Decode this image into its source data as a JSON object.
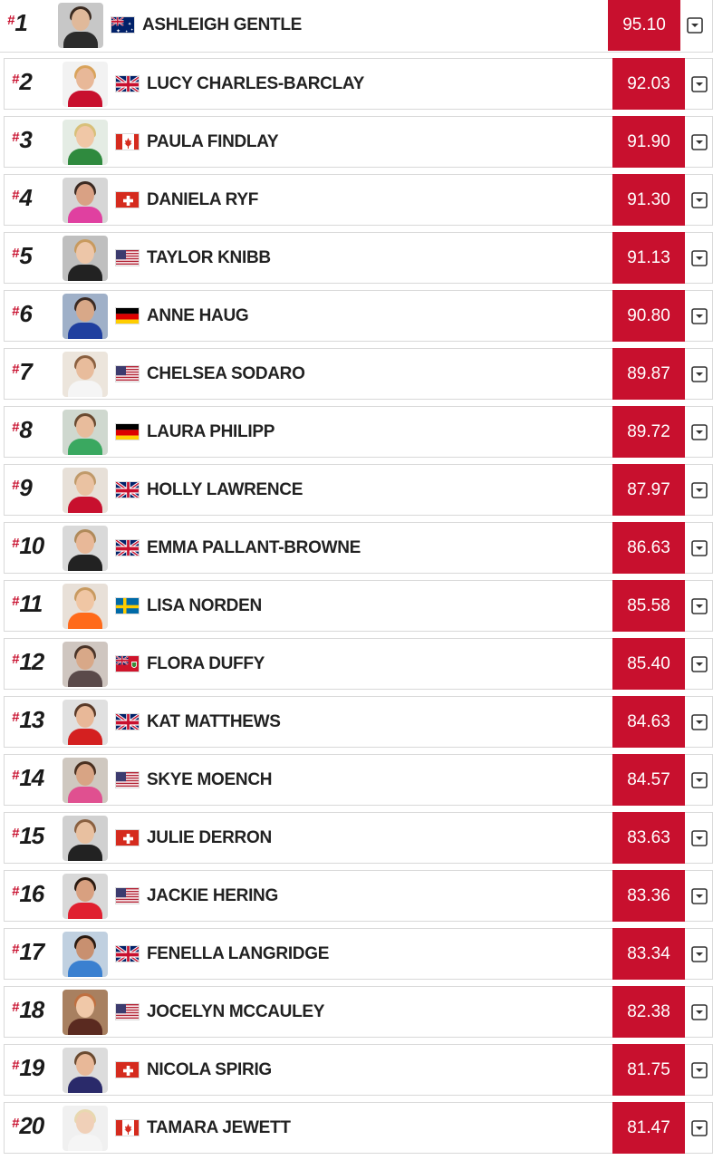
{
  "accent_color": "#c8102e",
  "rank_prefix": "#",
  "expand_icon": "chevron-down-box-icon",
  "athletes": [
    {
      "rank": "1",
      "name": "ASHLEIGH GENTLE",
      "country": "AUS",
      "score": "95.10"
    },
    {
      "rank": "2",
      "name": "LUCY CHARLES-BARCLAY",
      "country": "GBR",
      "score": "92.03"
    },
    {
      "rank": "3",
      "name": "PAULA FINDLAY",
      "country": "CAN",
      "score": "91.90"
    },
    {
      "rank": "4",
      "name": "DANIELA RYF",
      "country": "SUI",
      "score": "91.30"
    },
    {
      "rank": "5",
      "name": "TAYLOR KNIBB",
      "country": "USA",
      "score": "91.13"
    },
    {
      "rank": "6",
      "name": "ANNE HAUG",
      "country": "GER",
      "score": "90.80"
    },
    {
      "rank": "7",
      "name": "CHELSEA SODARO",
      "country": "USA",
      "score": "89.87"
    },
    {
      "rank": "8",
      "name": "LAURA PHILIPP",
      "country": "GER",
      "score": "89.72"
    },
    {
      "rank": "9",
      "name": "HOLLY LAWRENCE",
      "country": "GBR",
      "score": "87.97"
    },
    {
      "rank": "10",
      "name": "EMMA PALLANT-BROWNE",
      "country": "GBR",
      "score": "86.63"
    },
    {
      "rank": "11",
      "name": "LISA NORDEN",
      "country": "SWE",
      "score": "85.58"
    },
    {
      "rank": "12",
      "name": "FLORA DUFFY",
      "country": "BER",
      "score": "85.40"
    },
    {
      "rank": "13",
      "name": "KAT MATTHEWS",
      "country": "GBR",
      "score": "84.63"
    },
    {
      "rank": "14",
      "name": "SKYE MOENCH",
      "country": "USA",
      "score": "84.57"
    },
    {
      "rank": "15",
      "name": "JULIE DERRON",
      "country": "SUI",
      "score": "83.63"
    },
    {
      "rank": "16",
      "name": "JACKIE HERING",
      "country": "USA",
      "score": "83.36"
    },
    {
      "rank": "17",
      "name": "FENELLA LANGRIDGE",
      "country": "GBR",
      "score": "83.34"
    },
    {
      "rank": "18",
      "name": "JOCELYN MCCAULEY",
      "country": "USA",
      "score": "82.38"
    },
    {
      "rank": "19",
      "name": "NICOLA SPIRIG",
      "country": "SUI",
      "score": "81.75"
    },
    {
      "rank": "20",
      "name": "TAMARA JEWETT",
      "country": "CAN",
      "score": "81.47"
    }
  ]
}
